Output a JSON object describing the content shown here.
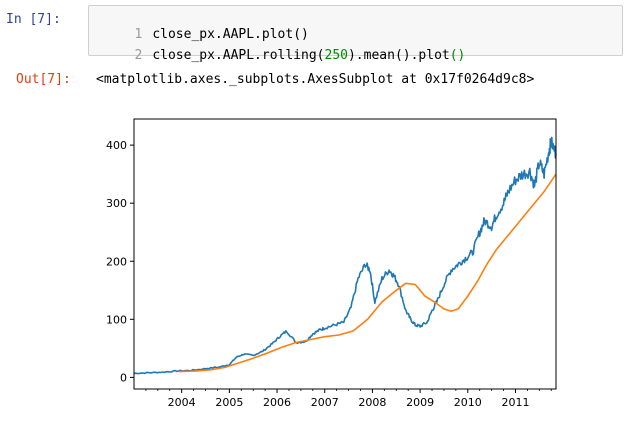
{
  "cell": {
    "in_prompt": "In  [7]:",
    "out_prompt": "Out[7]:",
    "line_numbers": [
      "1",
      "2"
    ],
    "code": {
      "line1": "close_px.AAPL.plot()",
      "line2_pre": "close_px.AAPL.rolling(",
      "line2_num": "250",
      "line2_post": ").mean().plot",
      "line2_paren": "()"
    },
    "output_text": "<matplotlib.axes._subplots.AxesSubplot at 0x17f0264d9c8>"
  },
  "chart_data": {
    "type": "line",
    "title": "",
    "xlabel": "",
    "ylabel": "",
    "xlim": [
      2003.0,
      2011.85
    ],
    "ylim": [
      -20,
      445
    ],
    "xticks": [
      "2004",
      "2005",
      "2006",
      "2007",
      "2008",
      "2009",
      "2010",
      "2011"
    ],
    "yticks": [
      "0",
      "100",
      "200",
      "300",
      "400"
    ],
    "grid": false,
    "legend": "none",
    "series": [
      {
        "color": "#1f77b4",
        "x": [
          2003.0,
          2003.3,
          2003.6,
          2003.9,
          2004.2,
          2004.5,
          2004.8,
          2005.0,
          2005.15,
          2005.3,
          2005.5,
          2005.7,
          2005.9,
          2006.05,
          2006.2,
          2006.4,
          2006.6,
          2006.75,
          2006.9,
          2007.0,
          2007.2,
          2007.4,
          2007.55,
          2007.7,
          2007.85,
          2007.95,
          2008.05,
          2008.2,
          2008.35,
          2008.45,
          2008.55,
          2008.7,
          2008.8,
          2008.9,
          2009.0,
          2009.15,
          2009.25,
          2009.35,
          2009.5,
          2009.65,
          2009.8,
          2009.95,
          2010.1,
          2010.25,
          2010.35,
          2010.5,
          2010.6,
          2010.75,
          2010.85,
          2011.0,
          2011.15,
          2011.3,
          2011.4,
          2011.5,
          2011.6,
          2011.7,
          2011.75,
          2011.85
        ],
        "y": [
          7,
          8,
          9,
          11,
          12,
          15,
          18,
          22,
          35,
          40,
          38,
          45,
          58,
          70,
          80,
          60,
          62,
          75,
          82,
          85,
          90,
          95,
          120,
          170,
          195,
          185,
          130,
          170,
          185,
          175,
          160,
          115,
          100,
          90,
          88,
          95,
          115,
          130,
          160,
          185,
          195,
          205,
          215,
          250,
          270,
          260,
          280,
          300,
          320,
          340,
          350,
          355,
          330,
          370,
          350,
          390,
          405,
          385
        ]
      },
      {
        "color": "#ff7f0e",
        "x": [
          2003.95,
          2004.3,
          2004.6,
          2004.9,
          2005.2,
          2005.5,
          2005.8,
          2006.1,
          2006.4,
          2006.7,
          2007.0,
          2007.3,
          2007.6,
          2007.9,
          2008.2,
          2008.5,
          2008.7,
          2008.9,
          2009.1,
          2009.3,
          2009.5,
          2009.65,
          2009.8,
          2010.0,
          2010.2,
          2010.4,
          2010.6,
          2010.8,
          2011.0,
          2011.2,
          2011.4,
          2011.6,
          2011.85
        ],
        "y": [
          10,
          11,
          13,
          17,
          25,
          33,
          42,
          52,
          60,
          65,
          70,
          73,
          80,
          100,
          130,
          150,
          162,
          160,
          140,
          130,
          118,
          114,
          118,
          140,
          165,
          195,
          220,
          240,
          260,
          280,
          300,
          320,
          350
        ]
      }
    ]
  }
}
